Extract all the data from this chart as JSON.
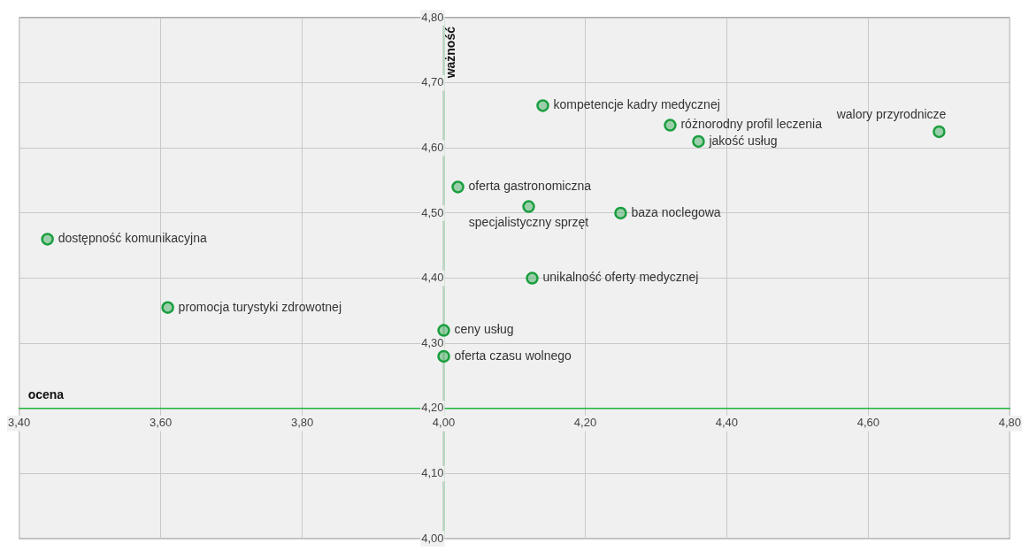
{
  "chart_data": {
    "type": "scatter",
    "xlabel": "ocena",
    "ylabel": "ważność",
    "xlim": [
      3.4,
      4.8
    ],
    "xticks": [
      {
        "value": 3.4,
        "label": "3,40"
      },
      {
        "value": 3.6,
        "label": "3,60"
      },
      {
        "value": 3.8,
        "label": "3,80"
      },
      {
        "value": 4.0,
        "label": "4,00"
      },
      {
        "value": 4.2,
        "label": "4,20"
      },
      {
        "value": 4.4,
        "label": "4,40"
      },
      {
        "value": 4.6,
        "label": "4,60"
      },
      {
        "value": 4.8,
        "label": "4,80"
      }
    ],
    "ylim": [
      4.0,
      4.8
    ],
    "yticks": [
      {
        "value": 4.0,
        "label": "4,00"
      },
      {
        "value": 4.1,
        "label": "4,10"
      },
      {
        "value": 4.2,
        "label": "4,20"
      },
      {
        "value": 4.3,
        "label": "4,30"
      },
      {
        "value": 4.4,
        "label": "4,40"
      },
      {
        "value": 4.5,
        "label": "4,50"
      },
      {
        "value": 4.6,
        "label": "4,60"
      },
      {
        "value": 4.7,
        "label": "4,70"
      },
      {
        "value": 4.8,
        "label": "4,80"
      }
    ],
    "grid": true,
    "legend": false,
    "marker": "circle",
    "series": [
      {
        "color": "#1a9e3f",
        "x": [
          3.44,
          3.61,
          4.0,
          4.0,
          4.02,
          4.12,
          4.125,
          4.14,
          4.32,
          4.36,
          4.25,
          4.7
        ],
        "values": [
          4.46,
          4.355,
          4.32,
          4.28,
          4.54,
          4.51,
          4.4,
          4.665,
          4.635,
          4.61,
          4.5,
          4.625
        ]
      }
    ],
    "annotations": [
      {
        "text": "dostępność komunikacyjna",
        "x": 3.44,
        "y": 4.46
      },
      {
        "text": "promocja turystyki zdrowotnej",
        "x": 3.61,
        "y": 4.355
      },
      {
        "text": "ceny usług",
        "x": 4.0,
        "y": 4.32
      },
      {
        "text": "oferta czasu wolnego",
        "x": 4.0,
        "y": 4.28
      },
      {
        "text": "oferta gastronomiczna",
        "x": 4.02,
        "y": 4.54
      },
      {
        "text": "specjalistyczny sprzęt",
        "x": 4.12,
        "y": 4.51
      },
      {
        "text": "unikalność oferty medycznej",
        "x": 4.125,
        "y": 4.4
      },
      {
        "text": "kompetencje kadry medycznej",
        "x": 4.14,
        "y": 4.665
      },
      {
        "text": "różnorodny profil leczenia",
        "x": 4.32,
        "y": 4.635
      },
      {
        "text": "jakość usług",
        "x": 4.36,
        "y": 4.61
      },
      {
        "text": "baza noclegowa",
        "x": 4.25,
        "y": 4.5
      },
      {
        "text": "walory przyrodnicze",
        "x": 4.7,
        "y": 4.625
      }
    ]
  }
}
